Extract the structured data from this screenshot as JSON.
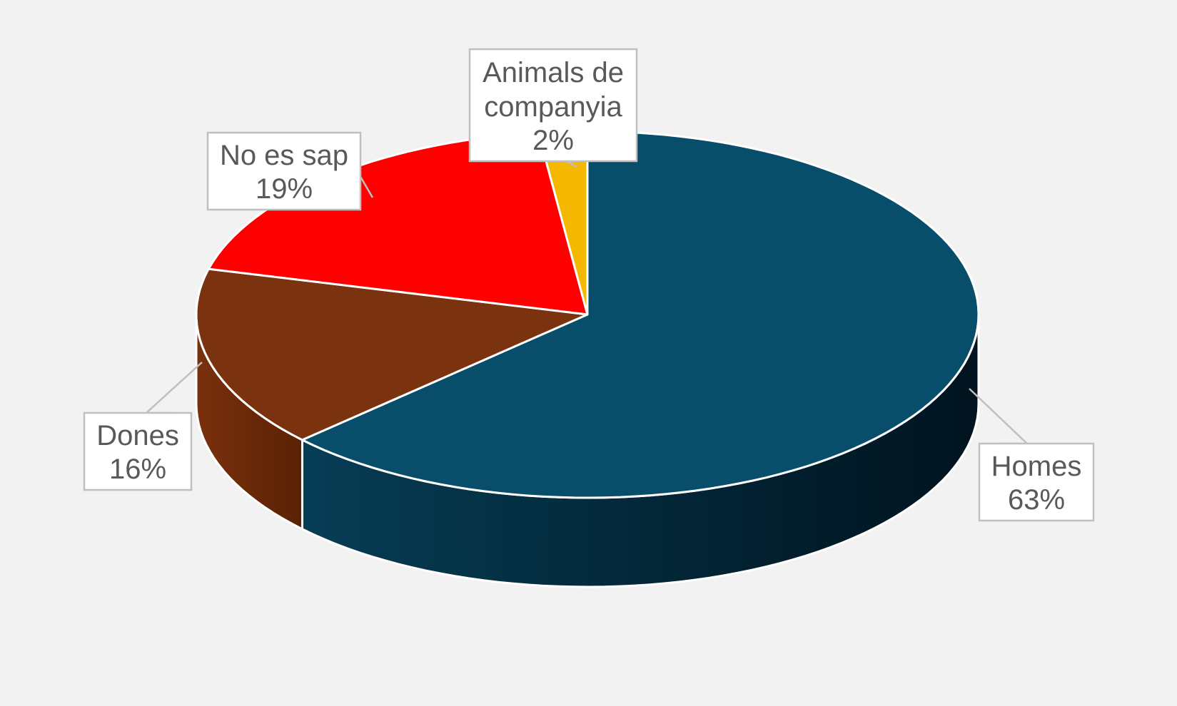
{
  "chart_data": {
    "type": "pie",
    "style": "3d",
    "title": "",
    "slices": [
      {
        "label": "Homes",
        "value": 63,
        "value_text": "63%",
        "color": "#084d6a"
      },
      {
        "label": "Dones",
        "value": 16,
        "value_text": "16%",
        "color": "#7b320e"
      },
      {
        "label": "No es sap",
        "value": 19,
        "value_text": "19%",
        "color": "#ff0000"
      },
      {
        "label": "Animals de companyia",
        "label_lines": [
          "Animals de",
          "companyia"
        ],
        "value": 2,
        "value_text": "2%",
        "color": "#f5b800"
      }
    ],
    "legend": "none",
    "data_labels": "callout"
  }
}
